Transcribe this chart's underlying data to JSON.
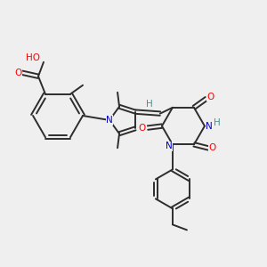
{
  "background_color": "#efefef",
  "bond_color": "#2d2d2d",
  "atom_colors": {
    "O": "#ff0000",
    "N": "#0000cd",
    "H": "#4a9090",
    "C": "#2d2d2d"
  },
  "figsize": [
    3.0,
    3.0
  ],
  "dpi": 100
}
